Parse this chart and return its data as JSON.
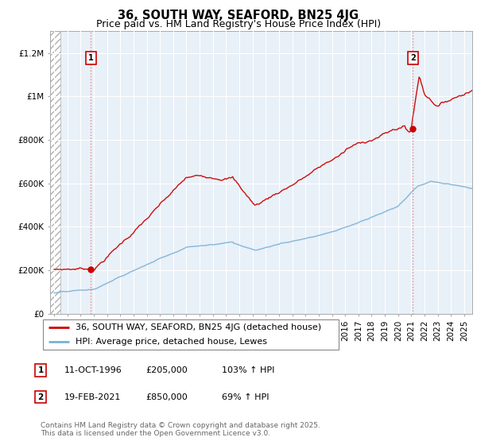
{
  "title": "36, SOUTH WAY, SEAFORD, BN25 4JG",
  "subtitle": "Price paid vs. HM Land Registry's House Price Index (HPI)",
  "ylim": [
    0,
    1300000
  ],
  "xlim_start": 1993.7,
  "xlim_end": 2025.6,
  "yticks": [
    0,
    200000,
    400000,
    600000,
    800000,
    1000000,
    1200000
  ],
  "ytick_labels": [
    "£0",
    "£200K",
    "£400K",
    "£600K",
    "£800K",
    "£1M",
    "£1.2M"
  ],
  "red_line_color": "#cc0000",
  "blue_line_color": "#7ab0d4",
  "dashed_line_color": "#e87878",
  "chart_bg_color": "#e8f0f8",
  "hatch_color": "#c8c8c8",
  "point1_x": 1996.79,
  "point1_y": 205000,
  "point2_x": 2021.12,
  "point2_y": 850000,
  "legend_label_red": "36, SOUTH WAY, SEAFORD, BN25 4JG (detached house)",
  "legend_label_blue": "HPI: Average price, detached house, Lewes",
  "table_row1": [
    "1",
    "11-OCT-1996",
    "£205,000",
    "103% ↑ HPI"
  ],
  "table_row2": [
    "2",
    "19-FEB-2021",
    "£850,000",
    "69% ↑ HPI"
  ],
  "footnote": "Contains HM Land Registry data © Crown copyright and database right 2025.\nThis data is licensed under the Open Government Licence v3.0.",
  "title_fontsize": 10.5,
  "subtitle_fontsize": 9,
  "tick_fontsize": 7.5,
  "legend_fontsize": 8,
  "table_fontsize": 8,
  "footnote_fontsize": 6.5
}
